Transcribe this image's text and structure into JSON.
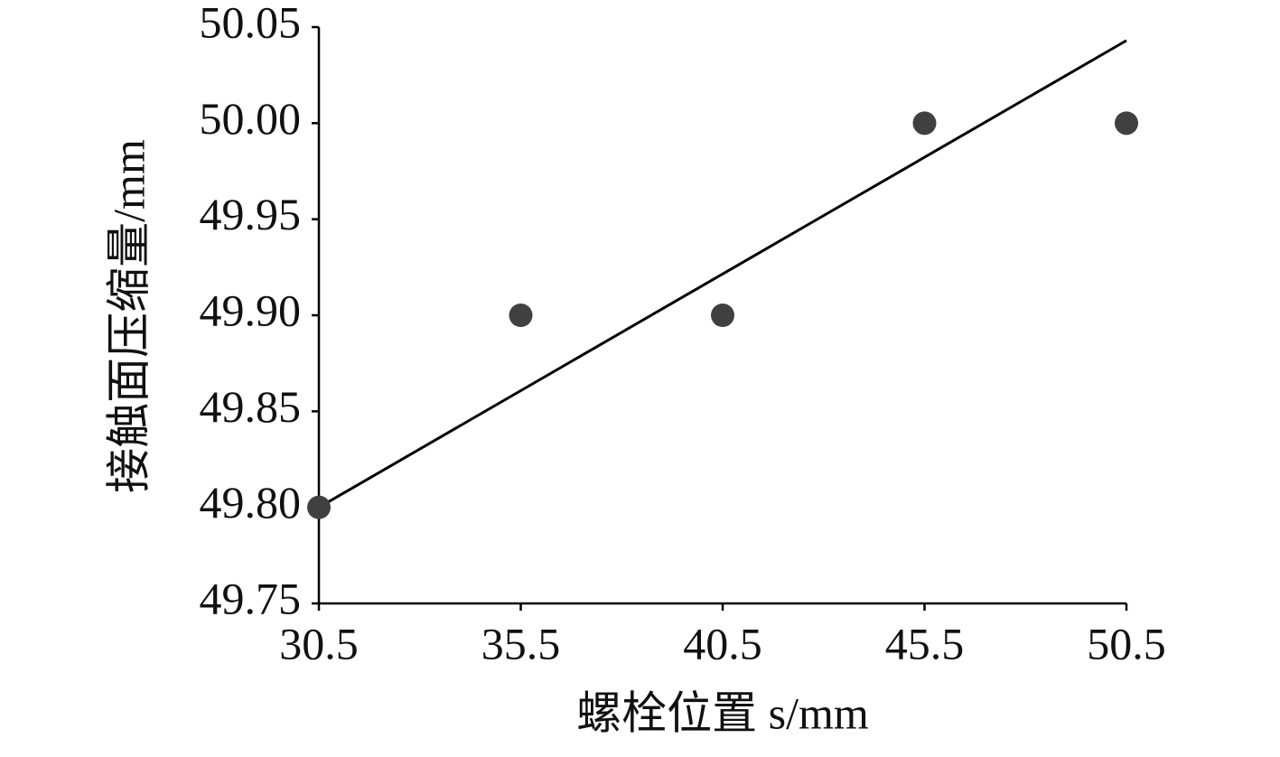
{
  "chart_data": {
    "type": "scatter",
    "x_label": "螺栓位置 s/mm",
    "y_label": "接触面压缩量/mm",
    "x": [
      30.5,
      35.5,
      40.5,
      45.5,
      50.5
    ],
    "series": [
      {
        "color": "#404040",
        "values": [
          49.8,
          49.9,
          49.9,
          50.0,
          50.0
        ]
      }
    ],
    "trend": {
      "color": "#000000",
      "x": [
        30.5,
        50.5
      ],
      "values": [
        49.8,
        50.043
      ]
    },
    "xlim": [
      30.5,
      50.5
    ],
    "xticks": [
      30.5,
      35.5,
      40.5,
      45.5,
      50.5
    ],
    "ylim": [
      49.75,
      50.05
    ],
    "yticks": [
      49.75,
      {
        "value": 49.8,
        "label": "49.80"
      },
      49.85,
      {
        "value": 49.9,
        "label": "49.90"
      },
      49.95,
      {
        "value": 50.0,
        "label": "50.00"
      },
      50.05
    ]
  }
}
